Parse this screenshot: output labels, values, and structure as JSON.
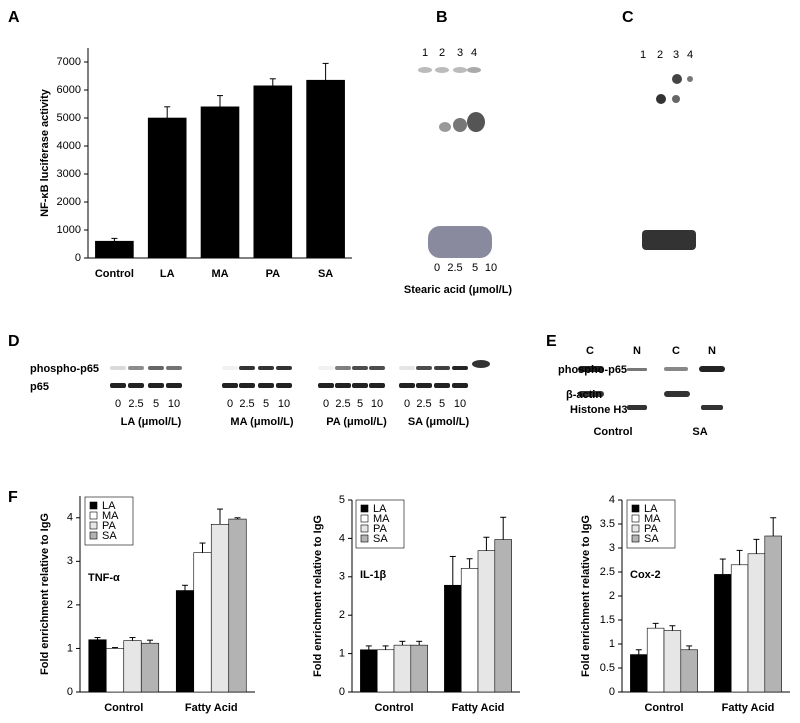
{
  "panel_a": {
    "label": "A"
  },
  "panel_b": {
    "label": "B",
    "lanes": [
      "1",
      "2",
      "3",
      "4"
    ],
    "ticks": [
      "0",
      "2.5",
      "5",
      "10"
    ],
    "x_label": "Stearic acid (μmol/L)"
  },
  "panel_c": {
    "label": "C",
    "lanes": [
      "1",
      "2",
      "3",
      "4"
    ]
  },
  "panel_d": {
    "label": "D",
    "row_labels": [
      "phospho-p65",
      "p65"
    ],
    "groups": [
      {
        "ticks": [
          "0",
          "2.5",
          "5",
          "10"
        ],
        "label": "LA (μmol/L)"
      },
      {
        "ticks": [
          "0",
          "2.5",
          "5",
          "10"
        ],
        "label": "MA (μmol/L)"
      },
      {
        "ticks": [
          "0",
          "2.5",
          "5",
          "10"
        ],
        "label": "PA (μmol/L)"
      },
      {
        "ticks": [
          "0",
          "2.5",
          "5",
          "10"
        ],
        "label": "SA (μmol/L)"
      }
    ]
  },
  "panel_e": {
    "label": "E",
    "lanes": [
      "C",
      "N",
      "C",
      "N"
    ],
    "row_labels": [
      "phospho-p65",
      "β-actin",
      "Histone H3"
    ],
    "groups": [
      "Control",
      "SA"
    ]
  },
  "panel_f": {
    "label": "F"
  },
  "chart_data": [
    {
      "type": "bar",
      "y_label": "NF-κB luciferase activity",
      "categories": [
        "Control",
        "LA",
        "MA",
        "PA",
        "SA"
      ],
      "values": [
        600,
        5000,
        5400,
        6150,
        6350
      ],
      "errors": [
        100,
        400,
        400,
        250,
        600
      ],
      "color": "#000000",
      "ylim": [
        0,
        7500
      ],
      "yticks": [
        0,
        1000,
        2000,
        3000,
        4000,
        5000,
        6000,
        7000
      ]
    },
    {
      "type": "bar",
      "y_label": "Fold enrichment relative to IgG",
      "annotation": "TNF-α",
      "categories": [
        "Control",
        "Fatty Acid"
      ],
      "series": [
        {
          "name": "LA",
          "color": "#000000",
          "values": [
            1.2,
            2.33
          ],
          "errors": [
            0.05,
            0.12
          ]
        },
        {
          "name": "MA",
          "color": "#ffffff",
          "values": [
            1.0,
            3.2
          ],
          "errors": [
            0.02,
            0.22
          ]
        },
        {
          "name": "PA",
          "color": "#e6e6e6",
          "values": [
            1.18,
            3.85
          ],
          "errors": [
            0.07,
            0.35
          ]
        },
        {
          "name": "SA",
          "color": "#b3b3b3",
          "values": [
            1.12,
            3.97
          ],
          "errors": [
            0.07,
            0.03
          ]
        }
      ],
      "ylim": [
        0,
        4.5
      ],
      "yticks": [
        0,
        1,
        2,
        3,
        4
      ],
      "legend": "upper left"
    },
    {
      "type": "bar",
      "y_label": "Fold enrichment relative to IgG",
      "annotation": "IL-1β",
      "categories": [
        "Control",
        "Fatty Acid"
      ],
      "series": [
        {
          "name": "LA",
          "color": "#000000",
          "values": [
            1.1,
            2.78
          ],
          "errors": [
            0.1,
            0.75
          ]
        },
        {
          "name": "MA",
          "color": "#ffffff",
          "values": [
            1.1,
            3.22
          ],
          "errors": [
            0.1,
            0.25
          ]
        },
        {
          "name": "PA",
          "color": "#e6e6e6",
          "values": [
            1.22,
            3.68
          ],
          "errors": [
            0.1,
            0.35
          ]
        },
        {
          "name": "SA",
          "color": "#b3b3b3",
          "values": [
            1.22,
            3.97
          ],
          "errors": [
            0.1,
            0.58
          ]
        }
      ],
      "ylim": [
        0,
        5
      ],
      "yticks": [
        0,
        1,
        2,
        3,
        4,
        5
      ],
      "legend": "upper left"
    },
    {
      "type": "bar",
      "y_label": "Fold enrichment relative to IgG",
      "annotation": "Cox-2",
      "categories": [
        "Control",
        "Fatty Acid"
      ],
      "series": [
        {
          "name": "LA",
          "color": "#000000",
          "values": [
            0.78,
            2.45
          ],
          "errors": [
            0.1,
            0.32
          ]
        },
        {
          "name": "MA",
          "color": "#ffffff",
          "values": [
            1.33,
            2.65
          ],
          "errors": [
            0.1,
            0.3
          ]
        },
        {
          "name": "PA",
          "color": "#e6e6e6",
          "values": [
            1.28,
            2.88
          ],
          "errors": [
            0.1,
            0.3
          ]
        },
        {
          "name": "SA",
          "color": "#b3b3b3",
          "values": [
            0.88,
            3.25
          ],
          "errors": [
            0.08,
            0.38
          ]
        }
      ],
      "ylim": [
        0,
        4
      ],
      "yticks": [
        0,
        0.5,
        1,
        1.5,
        2,
        2.5,
        3,
        3.5,
        4
      ],
      "legend": "upper left"
    }
  ]
}
